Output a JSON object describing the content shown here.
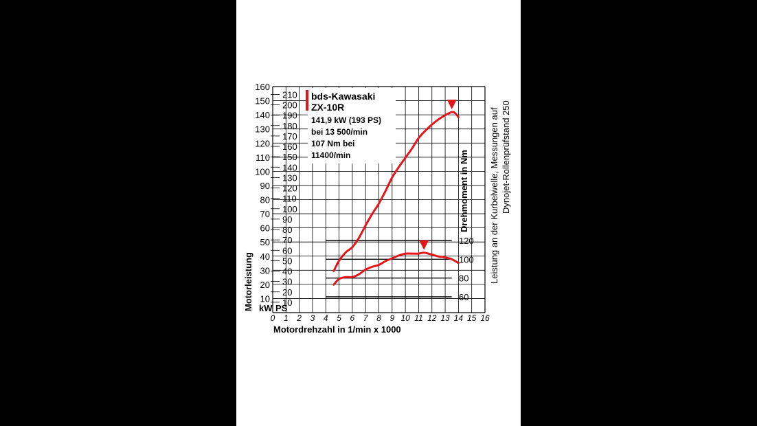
{
  "chart_data": {
    "type": "line",
    "xlabel": "Motordrehzahl in 1/min x 1000",
    "ylabel": "Motorleistung",
    "y2label": "Drehmoment in Nm",
    "side_note": [
      "Leistung an der Kurbelwelle, Messungen auf",
      "Dynojet-Rollenprüfstand 250"
    ],
    "x_ticks": [
      "0",
      "1",
      "2",
      "3",
      "4",
      "5",
      "6",
      "7",
      "8",
      "9",
      "10",
      "11",
      "12",
      "13",
      "14",
      "15",
      "16"
    ],
    "xlim": [
      0,
      16
    ],
    "kw_ticks": [
      "10",
      "20",
      "30",
      "40",
      "50",
      "60",
      "70",
      "80",
      "90",
      "100",
      "110",
      "120",
      "130",
      "140",
      "150",
      "160"
    ],
    "ylim_kw": [
      0,
      160
    ],
    "ps_ticks": [
      "10",
      "20",
      "30",
      "40",
      "50",
      "60",
      "70",
      "80",
      "90",
      "100",
      "110",
      "120",
      "130",
      "140",
      "150",
      "160",
      "170",
      "180",
      "190",
      "200",
      "210"
    ],
    "unit_kw": "kW",
    "unit_ps": "PS",
    "torque_ticks": [
      "60",
      "80",
      "100",
      "120"
    ],
    "torque_tick_values": [
      60,
      80,
      100,
      120
    ],
    "legend": {
      "lines": [
        "bds-Kawasaki",
        "ZX-10R",
        "141,9 kW (193 PS)",
        "bei 13 500/min",
        "107 Nm bei",
        "11400/min"
      ],
      "color": "#e3161b"
    },
    "series": [
      {
        "name": "bds-Kawasaki ZX-10R",
        "kind": "power_kw",
        "color": "#e3161b",
        "x": [
          4.6,
          5.0,
          5.5,
          6.0,
          6.5,
          7.0,
          7.5,
          8.0,
          8.5,
          9.0,
          9.5,
          10.0,
          10.5,
          11.0,
          11.5,
          12.0,
          12.5,
          13.0,
          13.5,
          13.75,
          14.0
        ],
        "y": [
          40,
          50,
          58,
          63,
          72,
          84,
          95,
          105,
          117,
          130,
          140,
          149,
          158,
          168,
          175,
          181,
          186,
          190,
          193,
          192,
          188
        ]
      },
      {
        "name": "bds-Kawasaki ZX-10R",
        "kind": "torque_nm",
        "color": "#e3161b",
        "x": [
          4.6,
          5.0,
          5.5,
          6.0,
          6.5,
          7.0,
          7.5,
          8.0,
          8.5,
          9.0,
          9.5,
          10.0,
          10.5,
          11.0,
          11.4,
          12.0,
          12.5,
          13.0,
          13.5,
          14.0
        ],
        "y": [
          73,
          79,
          81,
          81,
          84,
          89,
          92,
          94,
          98,
          101,
          104,
          106,
          106,
          106,
          107,
          105,
          103,
          102,
          100,
          96
        ]
      }
    ],
    "markers": [
      {
        "name": "peak-power-marker",
        "x": 13.5,
        "y": 193,
        "kind": "power_kw"
      },
      {
        "name": "peak-torque-marker",
        "x": 11.4,
        "y": 107,
        "kind": "torque_nm"
      }
    ],
    "grid": true
  }
}
